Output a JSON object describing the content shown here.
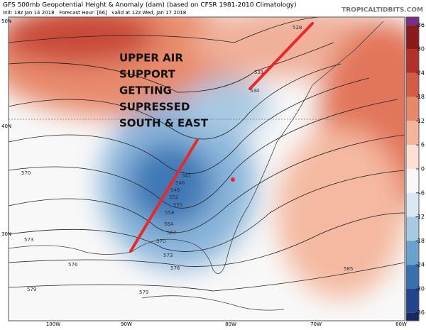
{
  "header": {
    "title": "GFS 500mb Geopotential Height & Anomaly (dam) (based on CFSR 1981-2010 Climatology)",
    "subtitle": "Init: 18z Jan 14 2018   Forecast Hour: [66]   valid at 12z Wed, Jan 17 2018",
    "source": "TROPICALTIDBITS.COM"
  },
  "annotation": {
    "lines": [
      "UPPER AIR",
      "SUPPORT",
      "GETTING",
      "SUPRESSED",
      "SOUTH & EAST"
    ]
  },
  "latitude_labels": [
    "50N",
    "40N",
    "30N"
  ],
  "longitude_labels": [
    "100W",
    "90W",
    "80W",
    "70W",
    "60W"
  ],
  "contour_labels": [
    "528",
    "531",
    "534",
    "541",
    "546",
    "549",
    "552",
    "555",
    "558",
    "564",
    "567",
    "570",
    "573",
    "573",
    "576",
    "576",
    "579",
    "579",
    "585",
    "570"
  ],
  "colorbar": {
    "ticks": [
      36,
      30,
      24,
      18,
      12,
      6,
      0,
      -6,
      -12,
      -18,
      -24,
      -30,
      -36
    ],
    "colors": [
      "#7a2d8c",
      "#8b1a1a",
      "#b2302a",
      "#d25c45",
      "#e8886a",
      "#f5b59a",
      "#fbe0d3",
      "#f7f7f7",
      "#dbe7f2",
      "#a9c9e3",
      "#6aa2cf",
      "#3a6fae",
      "#22448a",
      "#182a5e"
    ]
  }
}
